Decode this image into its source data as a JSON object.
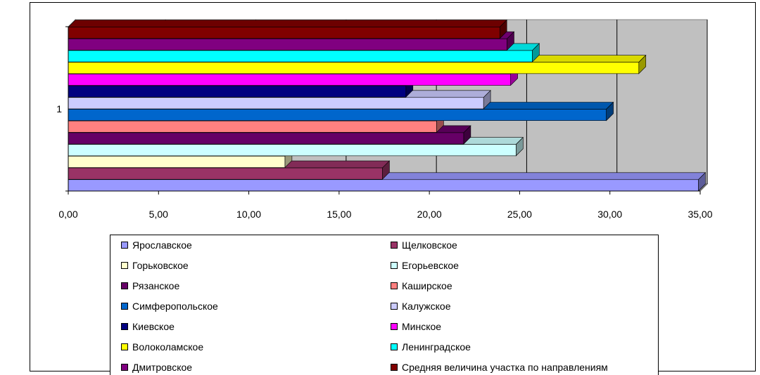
{
  "chart_data": {
    "type": "bar",
    "orientation": "horizontal",
    "three_d": true,
    "categories": [
      "1"
    ],
    "xlim": [
      0,
      35
    ],
    "x_ticks": [
      "0,00",
      "5,00",
      "10,00",
      "15,00",
      "20,00",
      "25,00",
      "30,00",
      "35,00"
    ],
    "grid": true,
    "legend_position": "bottom",
    "series": [
      {
        "name": "Ярославское",
        "value": 34.9,
        "color": "#9999FF"
      },
      {
        "name": "Щелковское",
        "value": 17.4,
        "color": "#993366"
      },
      {
        "name": "Горьковское",
        "value": 12.0,
        "color": "#FFFFCC"
      },
      {
        "name": "Егорьевское",
        "value": 24.8,
        "color": "#CCFFFF"
      },
      {
        "name": "Рязанское",
        "value": 21.9,
        "color": "#660066"
      },
      {
        "name": "Каширское",
        "value": 20.4,
        "color": "#FF8080"
      },
      {
        "name": "Симферопольское",
        "value": 29.8,
        "color": "#0066CC"
      },
      {
        "name": "Калужское",
        "value": 23.0,
        "color": "#CCCCFF"
      },
      {
        "name": "Киевское",
        "value": 18.7,
        "color": "#000080"
      },
      {
        "name": "Минское",
        "value": 24.5,
        "color": "#FF00FF"
      },
      {
        "name": "Волоколамское",
        "value": 31.6,
        "color": "#FFFF00"
      },
      {
        "name": "Ленинградское",
        "value": 25.7,
        "color": "#00FFFF"
      },
      {
        "name": "Дмитровское",
        "value": 24.3,
        "color": "#800080"
      },
      {
        "name": "Средняя величина участка по направлениям",
        "value": 23.9,
        "color": "#800000"
      }
    ]
  }
}
